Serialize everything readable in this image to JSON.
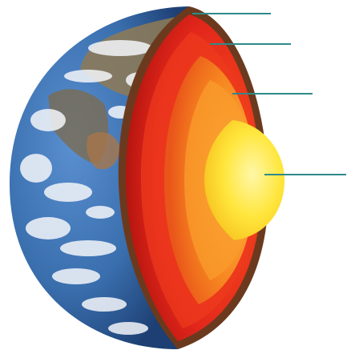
{
  "diagram": {
    "subject": "earth-interior-cross-section",
    "layers": [
      {
        "id": "crust",
        "color": "#6b3a1e"
      },
      {
        "id": "mantle",
        "color": "#d8231a"
      },
      {
        "id": "outer-core",
        "color": "#f47a1c"
      },
      {
        "id": "inner-core",
        "color": "#ffe23b"
      }
    ],
    "pointer_color": "#2f8a8a",
    "ocean_color": "#3a6fae",
    "cloud_color": "#f4f6fa"
  }
}
